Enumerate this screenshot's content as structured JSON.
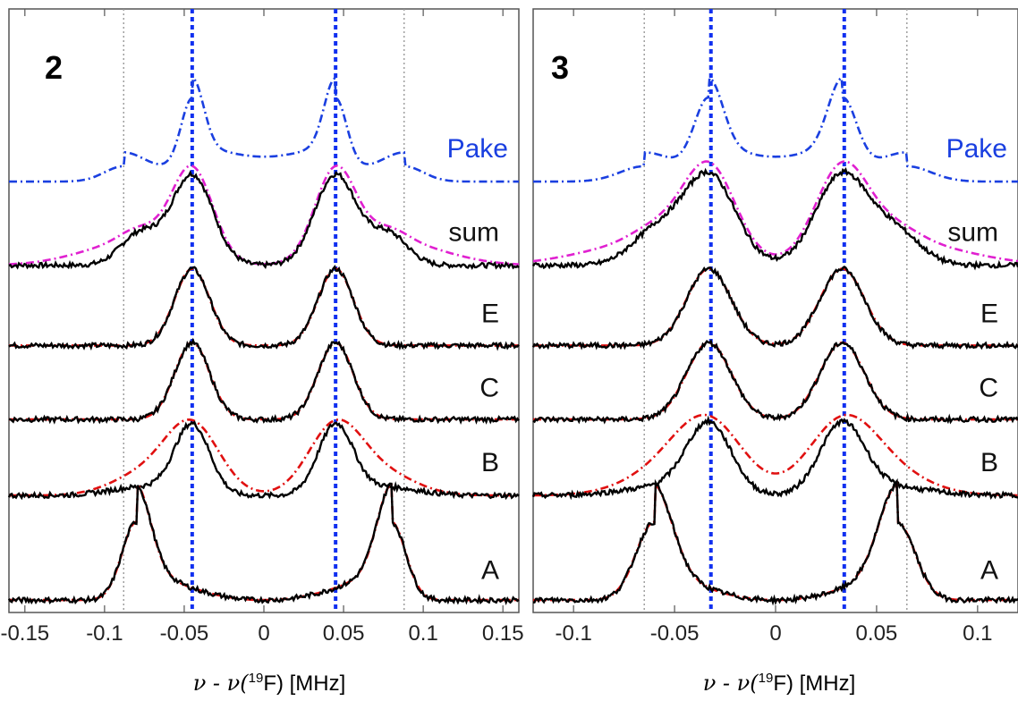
{
  "chart_data": [
    {
      "type": "line",
      "panel_label": "2",
      "xlabel_prefix": "ν - ν(",
      "xlabel_sup": "19",
      "xlabel_suffix": "F) [MHz]",
      "xlim": [
        -0.16,
        0.16
      ],
      "xticks": [
        -0.15,
        -0.1,
        -0.05,
        0,
        0.05,
        0.1,
        0.15
      ],
      "xtick_labels": [
        "-0.15",
        "-0.1",
        "-0.05",
        "0",
        "0.05",
        "0.1",
        "0.15"
      ],
      "yticks_visible": false,
      "center_lines": [
        -0.045,
        0.045
      ],
      "edge_lines": [
        -0.088,
        0.088
      ],
      "traces": [
        {
          "label": "Pake",
          "color": "#1a3fe0",
          "style": "dash-dot",
          "baseline": 6.05,
          "kind": "pake",
          "a": 0.088
        },
        {
          "label": "sum",
          "color": "#000000",
          "fit_color": "#e020d0",
          "baseline": 4.85,
          "kind": "sum",
          "a": 0.045,
          "shoulder": 0.078
        },
        {
          "label": "E",
          "color": "#000000",
          "fit_color": "#e01010",
          "baseline": 3.68,
          "kind": "pair",
          "a": 0.045
        },
        {
          "label": "C",
          "color": "#000000",
          "fit_color": "#e01010",
          "baseline": 2.62,
          "kind": "pair",
          "a": 0.045
        },
        {
          "label": "B",
          "color": "#000000",
          "fit_color": "#e01010",
          "baseline": 1.55,
          "kind": "pairwide",
          "a": 0.045
        },
        {
          "label": "A",
          "color": "#000000",
          "fit_color": "#e01010",
          "baseline": 0.0,
          "kind": "pake",
          "a": 0.08
        }
      ]
    },
    {
      "type": "line",
      "panel_label": "3",
      "xlabel_prefix": "ν - ν(",
      "xlabel_sup": "19",
      "xlabel_suffix": "F) [MHz]",
      "xlim": [
        -0.12,
        0.12
      ],
      "xticks": [
        -0.1,
        -0.05,
        0,
        0.05,
        0.1
      ],
      "xtick_labels": [
        "-0.1",
        "-0.05",
        "0",
        "0.05",
        "0.1"
      ],
      "yticks_visible": false,
      "center_lines": [
        -0.032,
        0.034
      ],
      "edge_lines": [
        -0.065,
        0.065
      ],
      "traces": [
        {
          "label": "Pake",
          "color": "#1a3fe0",
          "style": "dash-dot",
          "baseline": 6.05,
          "kind": "pake",
          "a": 0.065
        },
        {
          "label": "sum",
          "color": "#000000",
          "fit_color": "#e020d0",
          "baseline": 4.85,
          "kind": "sum",
          "a": 0.033,
          "shoulder": 0.06
        },
        {
          "label": "E",
          "color": "#000000",
          "fit_color": "#e01010",
          "baseline": 3.68,
          "kind": "pair",
          "a": 0.033
        },
        {
          "label": "C",
          "color": "#000000",
          "fit_color": "#e01010",
          "baseline": 2.62,
          "kind": "pair",
          "a": 0.033
        },
        {
          "label": "B",
          "color": "#000000",
          "fit_color": "#e01010",
          "baseline": 1.55,
          "kind": "pairwide",
          "a": 0.033
        },
        {
          "label": "A",
          "color": "#000000",
          "fit_color": "#e01010",
          "baseline": 0.0,
          "kind": "pake",
          "a": 0.06
        }
      ]
    }
  ]
}
